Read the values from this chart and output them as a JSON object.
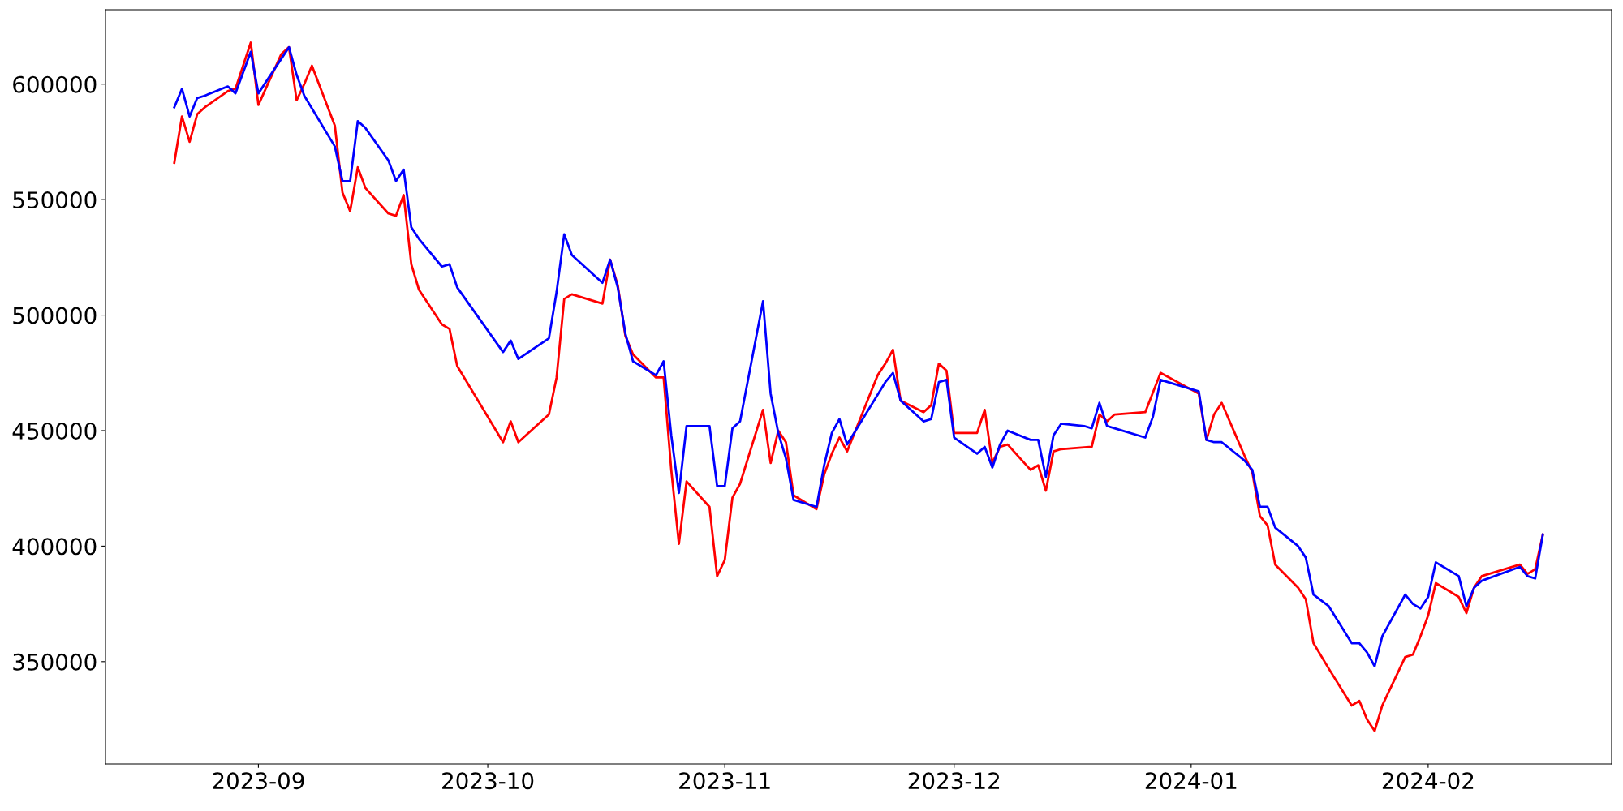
{
  "chart_data": {
    "type": "line",
    "xlim": [
      "2023-08-12",
      "2024-02-25"
    ],
    "xticks": [
      {
        "value": "2023-09-01",
        "label": "2023-09"
      },
      {
        "value": "2023-10-01",
        "label": "2023-10"
      },
      {
        "value": "2023-11-01",
        "label": "2023-11"
      },
      {
        "value": "2023-12-01",
        "label": "2023-12"
      },
      {
        "value": "2024-01-01",
        "label": "2024-01"
      },
      {
        "value": "2024-02-01",
        "label": "2024-02"
      }
    ],
    "ylim": [
      305700,
      632200
    ],
    "yticks": [
      350000,
      400000,
      450000,
      500000,
      550000,
      600000
    ],
    "grid": false,
    "legend": false,
    "marker": "none",
    "line_style": "solid",
    "series": [
      {
        "color": "#ff0000",
        "x": [
          "2023-08-21",
          "2023-08-22",
          "2023-08-23",
          "2023-08-24",
          "2023-08-25",
          "2023-08-28",
          "2023-08-29",
          "2023-08-31",
          "2023-09-01",
          "2023-09-04",
          "2023-09-05",
          "2023-09-06",
          "2023-09-07",
          "2023-09-08",
          "2023-09-11",
          "2023-09-12",
          "2023-09-13",
          "2023-09-14",
          "2023-09-15",
          "2023-09-18",
          "2023-09-19",
          "2023-09-20",
          "2023-09-21",
          "2023-09-22",
          "2023-09-25",
          "2023-09-26",
          "2023-09-27",
          "2023-10-03",
          "2023-10-04",
          "2023-10-05",
          "2023-10-09",
          "2023-10-10",
          "2023-10-11",
          "2023-10-12",
          "2023-10-16",
          "2023-10-17",
          "2023-10-18",
          "2023-10-19",
          "2023-10-20",
          "2023-10-23",
          "2023-10-24",
          "2023-10-25",
          "2023-10-26",
          "2023-10-27",
          "2023-10-30",
          "2023-10-31",
          "2023-11-01",
          "2023-11-02",
          "2023-11-03",
          "2023-11-06",
          "2023-11-07",
          "2023-11-08",
          "2023-11-09",
          "2023-11-10",
          "2023-11-13",
          "2023-11-14",
          "2023-11-15",
          "2023-11-16",
          "2023-11-17",
          "2023-11-21",
          "2023-11-22",
          "2023-11-23",
          "2023-11-24",
          "2023-11-27",
          "2023-11-28",
          "2023-11-29",
          "2023-11-30",
          "2023-12-01",
          "2023-12-04",
          "2023-12-05",
          "2023-12-06",
          "2023-12-07",
          "2023-12-08",
          "2023-12-11",
          "2023-12-12",
          "2023-12-13",
          "2023-12-14",
          "2023-12-15",
          "2023-12-19",
          "2023-12-20",
          "2023-12-21",
          "2023-12-22",
          "2023-12-26",
          "2023-12-28",
          "2024-01-02",
          "2024-01-03",
          "2024-01-04",
          "2024-01-05",
          "2024-01-08",
          "2024-01-09",
          "2024-01-10",
          "2024-01-11",
          "2024-01-12",
          "2024-01-15",
          "2024-01-16",
          "2024-01-17",
          "2024-01-19",
          "2024-01-22",
          "2024-01-23",
          "2024-01-24",
          "2024-01-25",
          "2024-01-26",
          "2024-01-29",
          "2024-01-30",
          "2024-01-31",
          "2024-02-01",
          "2024-02-02",
          "2024-02-05",
          "2024-02-06",
          "2024-02-07",
          "2024-02-08",
          "2024-02-13",
          "2024-02-14",
          "2024-02-15",
          "2024-02-16"
        ],
        "values": [
          566000,
          586000,
          575000,
          587000,
          590000,
          597000,
          598000,
          618000,
          591000,
          613000,
          616000,
          593000,
          600000,
          608000,
          582000,
          553000,
          545000,
          564000,
          555000,
          544000,
          543000,
          552000,
          522000,
          511000,
          496000,
          494000,
          478000,
          445000,
          454000,
          445000,
          457000,
          473000,
          507000,
          509000,
          505000,
          524000,
          513000,
          491000,
          483000,
          473000,
          473000,
          433000,
          401000,
          428000,
          417000,
          387000,
          394000,
          421000,
          427000,
          459000,
          436000,
          450000,
          445000,
          422000,
          416000,
          431000,
          440000,
          447000,
          441000,
          474000,
          479000,
          485000,
          463000,
          458000,
          461000,
          479000,
          476000,
          449000,
          449000,
          459000,
          436000,
          443000,
          444000,
          433000,
          435000,
          424000,
          441000,
          442000,
          443000,
          457000,
          454000,
          457000,
          458000,
          475000,
          466000,
          446000,
          457000,
          462000,
          439000,
          432000,
          413000,
          409000,
          392000,
          382000,
          377000,
          358000,
          347000,
          331000,
          333000,
          325000,
          320000,
          331000,
          352000,
          353000,
          361000,
          370000,
          384000,
          378000,
          371000,
          382000,
          387000,
          392000,
          388000,
          390000,
          405000
        ]
      },
      {
        "color": "#0000ff",
        "x": [
          "2023-08-21",
          "2023-08-22",
          "2023-08-23",
          "2023-08-24",
          "2023-08-25",
          "2023-08-28",
          "2023-08-29",
          "2023-08-31",
          "2023-09-01",
          "2023-09-04",
          "2023-09-05",
          "2023-09-06",
          "2023-09-07",
          "2023-09-11",
          "2023-09-12",
          "2023-09-13",
          "2023-09-14",
          "2023-09-15",
          "2023-09-18",
          "2023-09-19",
          "2023-09-20",
          "2023-09-21",
          "2023-09-22",
          "2023-09-25",
          "2023-09-26",
          "2023-09-27",
          "2023-10-03",
          "2023-10-04",
          "2023-10-05",
          "2023-10-09",
          "2023-10-10",
          "2023-10-11",
          "2023-10-12",
          "2023-10-16",
          "2023-10-17",
          "2023-10-18",
          "2023-10-19",
          "2023-10-20",
          "2023-10-23",
          "2023-10-24",
          "2023-10-25",
          "2023-10-26",
          "2023-10-27",
          "2023-10-30",
          "2023-10-31",
          "2023-11-01",
          "2023-11-02",
          "2023-11-03",
          "2023-11-06",
          "2023-11-07",
          "2023-11-08",
          "2023-11-09",
          "2023-11-10",
          "2023-11-13",
          "2023-11-14",
          "2023-11-15",
          "2023-11-16",
          "2023-11-17",
          "2023-11-22",
          "2023-11-23",
          "2023-11-24",
          "2023-11-27",
          "2023-11-28",
          "2023-11-29",
          "2023-11-30",
          "2023-12-01",
          "2023-12-04",
          "2023-12-05",
          "2023-12-06",
          "2023-12-07",
          "2023-12-08",
          "2023-12-11",
          "2023-12-12",
          "2023-12-13",
          "2023-12-14",
          "2023-12-15",
          "2023-12-18",
          "2023-12-19",
          "2023-12-20",
          "2023-12-21",
          "2023-12-22",
          "2023-12-26",
          "2023-12-27",
          "2023-12-28",
          "2024-01-02",
          "2024-01-03",
          "2024-01-04",
          "2024-01-05",
          "2024-01-08",
          "2024-01-09",
          "2024-01-10",
          "2024-01-11",
          "2024-01-12",
          "2024-01-15",
          "2024-01-16",
          "2024-01-17",
          "2024-01-19",
          "2024-01-22",
          "2024-01-23",
          "2024-01-24",
          "2024-01-25",
          "2024-01-26",
          "2024-01-29",
          "2024-01-30",
          "2024-01-31",
          "2024-02-01",
          "2024-02-02",
          "2024-02-05",
          "2024-02-06",
          "2024-02-07",
          "2024-02-08",
          "2024-02-13",
          "2024-02-14",
          "2024-02-15",
          "2024-02-16"
        ],
        "values": [
          590000,
          598000,
          586000,
          594000,
          595000,
          599000,
          596000,
          614000,
          596000,
          611000,
          616000,
          604000,
          595000,
          573000,
          558000,
          558000,
          584000,
          581000,
          567000,
          558000,
          563000,
          538000,
          533000,
          521000,
          522000,
          512000,
          484000,
          489000,
          481000,
          490000,
          510000,
          535000,
          526000,
          514000,
          524000,
          512000,
          492000,
          480000,
          474000,
          480000,
          448000,
          423000,
          452000,
          452000,
          426000,
          426000,
          451000,
          454000,
          506000,
          466000,
          449000,
          438000,
          420000,
          417000,
          435000,
          449000,
          455000,
          444000,
          471000,
          475000,
          463000,
          454000,
          455000,
          471000,
          472000,
          447000,
          440000,
          443000,
          434000,
          444000,
          450000,
          446000,
          446000,
          430000,
          448000,
          453000,
          452000,
          451000,
          462000,
          452000,
          451000,
          447000,
          456000,
          472000,
          467000,
          446000,
          445000,
          445000,
          437000,
          433000,
          417000,
          417000,
          408000,
          400000,
          395000,
          379000,
          374000,
          358000,
          358000,
          354000,
          348000,
          361000,
          379000,
          375000,
          373000,
          378000,
          393000,
          387000,
          374000,
          382000,
          385000,
          391000,
          387000,
          386000,
          405000
        ]
      }
    ]
  }
}
